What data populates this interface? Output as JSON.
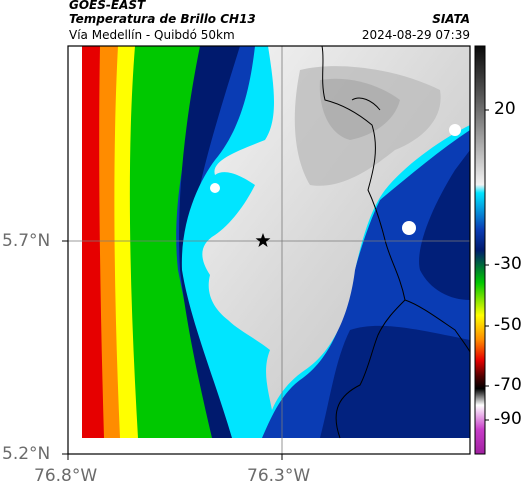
{
  "header": {
    "satellite": "GOES-EAST",
    "product": "Temperatura de Brillo CH13",
    "region": "Vía Medellín - Quibdó 50km",
    "source": "SIATA",
    "datetime": "2024-08-29 07:39"
  },
  "map": {
    "x_ticks": [
      "76.8°W",
      "76.3°W"
    ],
    "y_ticks": [
      "5.7°N",
      "5.2°N"
    ],
    "marker_icon": "star-icon",
    "crosshair": true
  },
  "colorbar": {
    "labels": [
      "20",
      "-30",
      "-50",
      "-70",
      "-90"
    ],
    "colors": {
      "gray_dark": "#1e1e1e",
      "gray_light": "#f0f0f0",
      "cyan": "#00e5ff",
      "blue": "#0a3cb4",
      "navy": "#001a6e",
      "green": "#00c800",
      "yellow": "#ffff00",
      "orange": "#ff8c00",
      "red": "#e60000",
      "darkred": "#500000",
      "black": "#000000",
      "magenta": "#c83cc8"
    }
  }
}
